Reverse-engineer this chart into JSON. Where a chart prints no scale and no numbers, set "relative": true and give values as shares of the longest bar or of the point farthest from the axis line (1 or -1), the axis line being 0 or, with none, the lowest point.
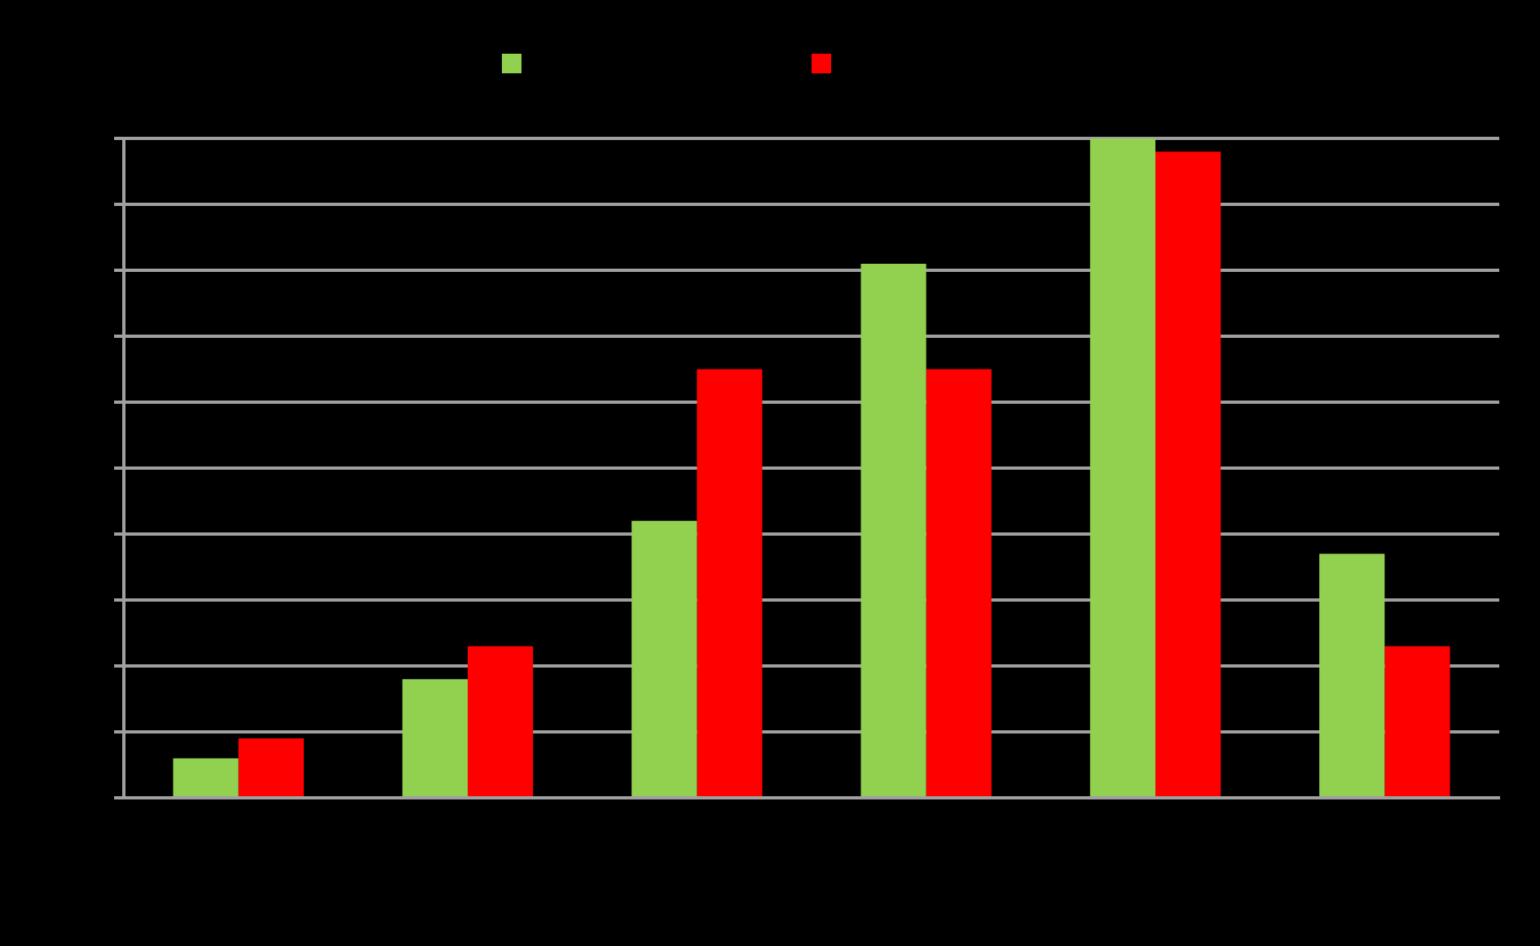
{
  "chart_data": {
    "type": "bar",
    "relative": true,
    "categories": [
      null,
      null,
      null,
      null,
      null,
      null
    ],
    "series": [
      {
        "color": "#92d050",
        "values": [
          0.06,
          0.18,
          0.42,
          0.81,
          1,
          0.37
        ]
      },
      {
        "color": "#ff0000",
        "values": [
          0.09,
          0.23,
          0.65,
          0.65,
          0.98,
          0.23
        ]
      }
    ],
    "grid": "y"
  }
}
